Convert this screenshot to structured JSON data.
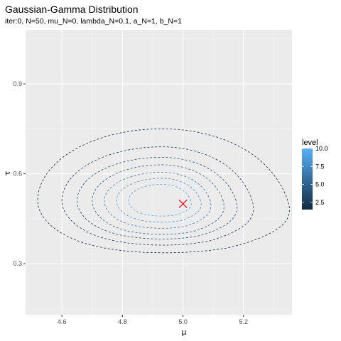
{
  "chart_data": {
    "type": "contour",
    "title": "Gaussian-Gamma Distribution",
    "subtitle": "iter:0, N=50, mu_N=0, lambda_N=0.1, a_N=1, b_N=1",
    "xlabel": "μ",
    "ylabel": "τ",
    "xlim": [
      4.48,
      5.36
    ],
    "ylim": [
      0.13,
      1.08
    ],
    "x_ticks": [
      4.6,
      4.8,
      5.0,
      5.2
    ],
    "x_tick_labels": [
      "4.6",
      "4.8",
      "5.0",
      "5.2"
    ],
    "y_ticks": [
      0.3,
      0.6,
      0.9
    ],
    "y_tick_labels": [
      "0.3",
      "0.6",
      "0.9"
    ],
    "grid": true,
    "legend": {
      "title": "level",
      "position": "right",
      "range": [
        1.5,
        10.0
      ],
      "ticks": [
        10.0,
        7.5,
        5.0,
        2.5
      ],
      "tick_labels": [
        "10.0",
        "7.5",
        "5.0",
        "2.5"
      ],
      "color_low": "#132B43",
      "color_high": "#56B1F7"
    },
    "contours": [
      {
        "level": 1.5,
        "mu_min": 4.52,
        "mu_max": 5.32,
        "tau_min": 0.34,
        "tau_max": 0.75,
        "mode_mu": 4.93,
        "mode_tau": 0.51
      },
      {
        "level": 2.5,
        "mu_min": 4.6,
        "mu_max": 5.21,
        "tau_min": 0.365,
        "tau_max": 0.69,
        "mode_mu": 4.93,
        "mode_tau": 0.51
      },
      {
        "level": 3.5,
        "mu_min": 4.65,
        "mu_max": 5.16,
        "tau_min": 0.385,
        "tau_max": 0.655,
        "mode_mu": 4.93,
        "mode_tau": 0.51
      },
      {
        "level": 5.0,
        "mu_min": 4.7,
        "mu_max": 5.12,
        "tau_min": 0.4,
        "tau_max": 0.63,
        "mode_mu": 4.93,
        "mode_tau": 0.51
      },
      {
        "level": 6.5,
        "mu_min": 4.74,
        "mu_max": 5.08,
        "tau_min": 0.42,
        "tau_max": 0.605,
        "mode_mu": 4.93,
        "mode_tau": 0.51
      },
      {
        "level": 8.0,
        "mu_min": 4.78,
        "mu_max": 5.05,
        "tau_min": 0.44,
        "tau_max": 0.585,
        "mode_mu": 4.93,
        "mode_tau": 0.51
      },
      {
        "level": 9.5,
        "mu_min": 4.82,
        "mu_max": 5.02,
        "tau_min": 0.46,
        "tau_max": 0.565,
        "mode_mu": 4.93,
        "mode_tau": 0.51
      }
    ],
    "marker": {
      "mu": 5.0,
      "tau": 0.5,
      "shape": "x",
      "color": "#ff0000"
    },
    "colors": {
      "panel_background": "#ebebeb",
      "grid_major": "#ffffff",
      "grid_minor": "#f5f5f5"
    }
  }
}
